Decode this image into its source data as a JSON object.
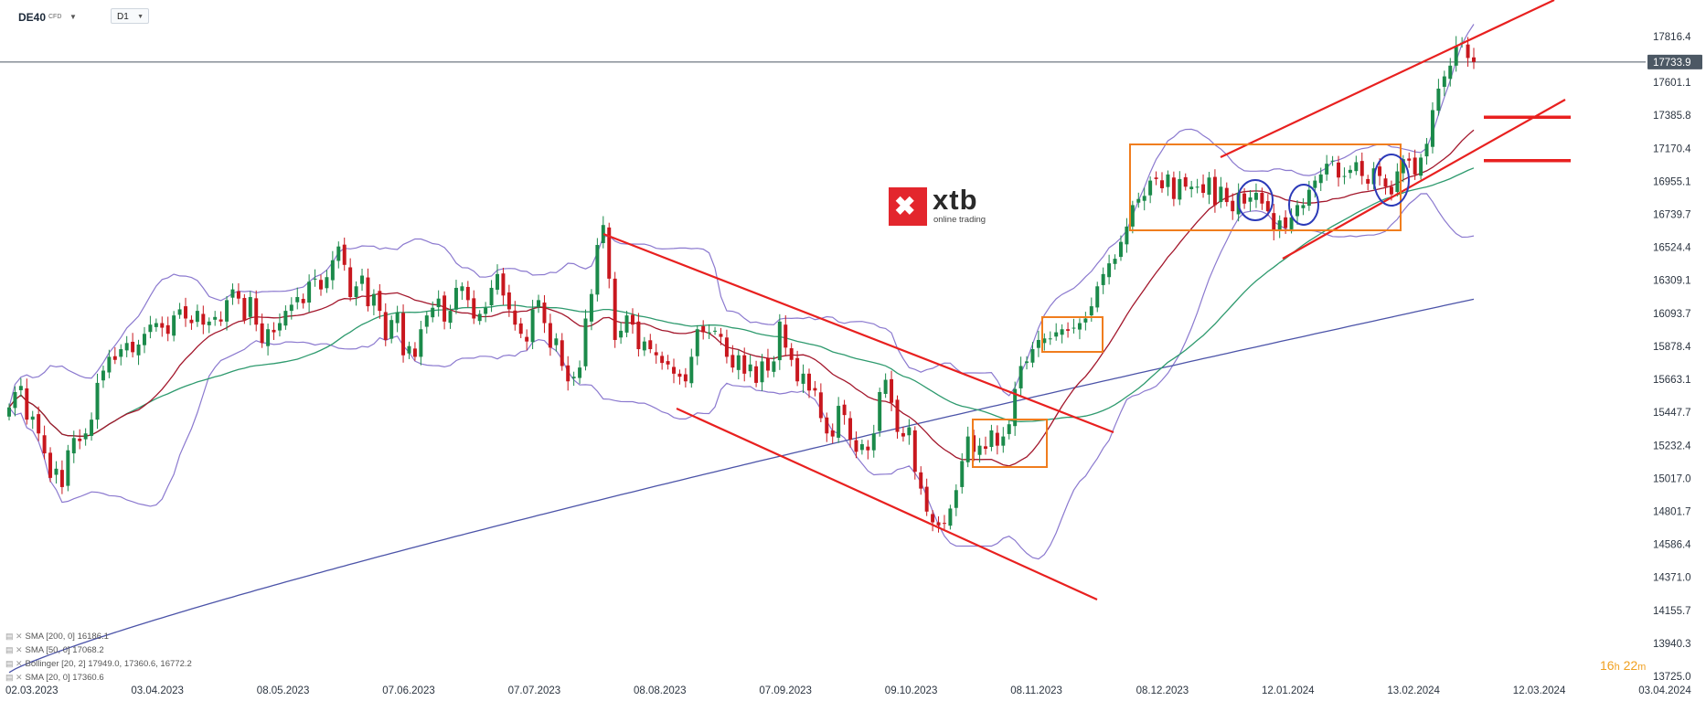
{
  "toolbar": {
    "symbol": "DE40",
    "symbol_type": "CFD",
    "timeframe": "D1"
  },
  "timer": {
    "hours": "16",
    "hours_unit": "h",
    "minutes": "22",
    "minutes_unit": "m"
  },
  "logo": {
    "name": "xtb",
    "tagline": "online trading"
  },
  "legend": [
    {
      "label": "SMA [200,  0]  16186.1"
    },
    {
      "label": "SMA [50, 0]  17068.2"
    },
    {
      "label": "Bollinger  [20, 2]  17949.0,  17360.6,  16772.2"
    },
    {
      "label": "SMA [20, 0]  17360.6"
    }
  ],
  "chart_data": {
    "type": "candlestick",
    "instrument": "DE40",
    "timeframe": "D1",
    "current_price": "17733.9",
    "y_ticks": [
      "17816.4",
      "17601.1",
      "17385.8",
      "17170.4",
      "16955.1",
      "16739.7",
      "16524.4",
      "16309.1",
      "16093.7",
      "15878.4",
      "15663.1",
      "15447.7",
      "15232.4",
      "15017.0",
      "14801.7",
      "14586.4",
      "14371.0",
      "14155.7",
      "13940.3",
      "13725.0"
    ],
    "x_ticks": [
      "02.03.2023",
      "03.04.2023",
      "08.05.2023",
      "07.06.2023",
      "07.07.2023",
      "08.08.2023",
      "07.09.2023",
      "09.10.2023",
      "08.11.2023",
      "08.12.2023",
      "12.01.2024",
      "13.02.2024",
      "12.03.2024",
      "03.04.2024"
    ],
    "colors": {
      "bull": "#1b8a4a",
      "bear": "#c8171e",
      "sma200": "#4b53a8",
      "sma50": "#2e9a6e",
      "sma20": "#a3172c",
      "bollinger": "#8b79cf",
      "annotation_red": "#e8201f",
      "annotation_orange": "#f07d1e",
      "annotation_blue": "#2c3ab8",
      "price_tag": "#4c5864"
    },
    "closes": [
      15480,
      15580,
      15620,
      15400,
      15420,
      15310,
      15180,
      15020,
      15080,
      14960,
      15200,
      15280,
      15260,
      15310,
      15400,
      15640,
      15720,
      15810,
      15790,
      15860,
      15900,
      15840,
      15890,
      15960,
      16020,
      16030,
      16000,
      15960,
      16080,
      16120,
      16060,
      16030,
      16110,
      16020,
      16040,
      16070,
      16040,
      16180,
      16250,
      16190,
      16050,
      16200,
      16020,
      15900,
      15990,
      15970,
      16030,
      16110,
      16150,
      16200,
      16160,
      16300,
      16320,
      16250,
      16330,
      16440,
      16530,
      16410,
      16200,
      16270,
      16340,
      16140,
      16220,
      16110,
      15920,
      16050,
      16100,
      15820,
      15880,
      15810,
      15990,
      16080,
      16130,
      16190,
      16040,
      16110,
      16260,
      16270,
      16180,
      16060,
      16090,
      16130,
      16260,
      16350,
      16210,
      16120,
      16020,
      15960,
      15910,
      16120,
      16180,
      16030,
      15870,
      15930,
      15750,
      15650,
      15680,
      15740,
      16060,
      16220,
      16540,
      16670,
      16320,
      15920,
      15980,
      16080,
      16020,
      15860,
      15910,
      15860,
      15820,
      15770,
      15760,
      15700,
      15680,
      15650,
      15810,
      15990,
      15970,
      15970,
      15980,
      15940,
      15810,
      15740,
      15820,
      15700,
      15760,
      15640,
      15780,
      15720,
      15780,
      16040,
      15870,
      15790,
      15650,
      15700,
      15590,
      15590,
      15410,
      15310,
      15290,
      15490,
      15430,
      15270,
      15190,
      15240,
      15200,
      15310,
      15580,
      15660,
      15510,
      15320,
      15290,
      15350,
      15060,
      14950,
      14800,
      14730,
      14710,
      14720,
      14820,
      14940,
      15130,
      15290,
      15190,
      15230,
      15210,
      15330,
      15230,
      15290,
      15370,
      15600,
      15750,
      15780,
      15860,
      15920,
      15930,
      15930,
      15970,
      15990,
      15980,
      16000,
      16030,
      16060,
      16140,
      16270,
      16350,
      16420,
      16450,
      16560,
      16660,
      16800,
      16840,
      16860,
      16960,
      16970,
      16910,
      17000,
      16840,
      16970,
      16920,
      16920,
      16920,
      16880,
      16980,
      16800,
      16920,
      16820,
      16760,
      16880,
      16810,
      16850,
      16880,
      16810,
      16760,
      16630,
      16700,
      16650,
      16720,
      16800,
      16800,
      16900,
      16960,
      17000,
      17070,
      17090,
      16980,
      16990,
      17030,
      17080,
      16990,
      16940,
      17040,
      16990,
      16920,
      16870,
      17020,
      17100,
      17090,
      17000,
      17110,
      17200,
      17420,
      17560,
      17640,
      17710,
      17840,
      17860,
      17760,
      17733.9
    ],
    "close_dates": {
      "first": "02.03.2023",
      "last": "current"
    },
    "sma200_end": 16186.1,
    "sma50_end": 17068.2,
    "sma20_end": 17360.6,
    "bollinger_end": {
      "upper": 17949.0,
      "middle": 17360.6,
      "lower": 16772.2
    },
    "annotations": [
      {
        "type": "descending channel",
        "color": "red"
      },
      {
        "type": "ascending channel",
        "color": "red"
      },
      {
        "type": "horizontal levels",
        "color": "red",
        "prices": [
          17385.8,
          17090
        ]
      },
      {
        "type": "consolidation boxes",
        "color": "orange",
        "count": 3
      },
      {
        "type": "range box",
        "color": "orange",
        "from": "08.12.2023",
        "to": "13.02.2024"
      },
      {
        "type": "circles",
        "color": "blue",
        "count": 3
      }
    ]
  }
}
